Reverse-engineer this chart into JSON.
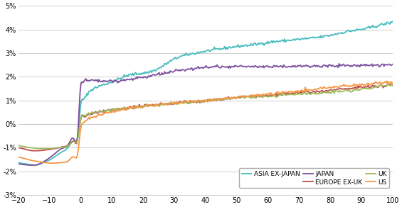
{
  "xlim": [
    -20,
    100
  ],
  "ylim": [
    -0.03,
    0.05
  ],
  "xticks": [
    -20,
    -10,
    0,
    10,
    20,
    30,
    40,
    50,
    60,
    70,
    80,
    90,
    100
  ],
  "yticks": [
    -0.03,
    -0.02,
    -0.01,
    0.0,
    0.01,
    0.02,
    0.03,
    0.04,
    0.05
  ],
  "series": {
    "ASIA EX-JAPAN": {
      "color": "#45BCBC",
      "linewidth": 1.3,
      "x": [
        -20,
        -18,
        -16,
        -14,
        -12,
        -10,
        -8,
        -6,
        -4,
        -2,
        -1,
        0,
        1,
        2,
        3,
        5,
        7,
        10,
        15,
        20,
        25,
        30,
        35,
        40,
        45,
        50,
        55,
        60,
        65,
        70,
        75,
        80,
        85,
        90,
        95,
        100
      ],
      "y": [
        -0.0163,
        -0.0168,
        -0.0172,
        -0.0173,
        -0.0163,
        -0.0152,
        -0.0135,
        -0.0118,
        -0.0098,
        -0.0072,
        -0.005,
        0.0082,
        0.0105,
        0.0125,
        0.014,
        0.0155,
        0.0165,
        0.0178,
        0.0205,
        0.0215,
        0.0235,
        0.0275,
        0.0295,
        0.0308,
        0.0318,
        0.0328,
        0.0335,
        0.0345,
        0.0352,
        0.0358,
        0.0365,
        0.0375,
        0.039,
        0.04,
        0.0415,
        0.043
      ]
    },
    "JAPAN": {
      "color": "#7B4F9E",
      "linewidth": 1.3,
      "x": [
        -20,
        -18,
        -16,
        -14,
        -12,
        -10,
        -8,
        -6,
        -4,
        -2,
        -1,
        0,
        0.5,
        1,
        2,
        3,
        5,
        7,
        10,
        15,
        20,
        25,
        30,
        35,
        40,
        45,
        50,
        55,
        60,
        65,
        70,
        75,
        80,
        85,
        90,
        95,
        100
      ],
      "y": [
        -0.0168,
        -0.0172,
        -0.0174,
        -0.0172,
        -0.016,
        -0.0143,
        -0.0122,
        -0.0103,
        -0.0087,
        -0.0068,
        -0.0052,
        0.0168,
        0.0178,
        0.0182,
        0.0185,
        0.0185,
        0.0183,
        0.0182,
        0.0182,
        0.0188,
        0.0198,
        0.021,
        0.0222,
        0.0232,
        0.024,
        0.0242,
        0.0243,
        0.0243,
        0.0244,
        0.0244,
        0.0245,
        0.0245,
        0.0246,
        0.0247,
        0.0248,
        0.025,
        0.0252
      ]
    },
    "EUROPE EX-UK": {
      "color": "#BE4B48",
      "linewidth": 1.3,
      "x": [
        -20,
        -18,
        -16,
        -14,
        -12,
        -10,
        -8,
        -6,
        -4,
        -2,
        -1,
        0,
        1,
        2,
        3,
        5,
        7,
        10,
        15,
        20,
        25,
        30,
        35,
        40,
        45,
        50,
        55,
        60,
        65,
        70,
        75,
        80,
        85,
        90,
        95,
        100
      ],
      "y": [
        -0.01,
        -0.0106,
        -0.0112,
        -0.0113,
        -0.0111,
        -0.0107,
        -0.0103,
        -0.0097,
        -0.0089,
        -0.0073,
        -0.0063,
        0.0022,
        0.0032,
        0.0038,
        0.0043,
        0.005,
        0.0055,
        0.006,
        0.0068,
        0.0076,
        0.0083,
        0.0088,
        0.0093,
        0.0098,
        0.0105,
        0.0112,
        0.0118,
        0.0122,
        0.0127,
        0.0132,
        0.0136,
        0.0142,
        0.0148,
        0.0155,
        0.016,
        0.0165
      ]
    },
    "UK": {
      "color": "#9BBB59",
      "linewidth": 1.3,
      "x": [
        -20,
        -18,
        -16,
        -14,
        -12,
        -10,
        -8,
        -6,
        -4,
        -2,
        -1,
        0,
        1,
        2,
        3,
        5,
        7,
        10,
        15,
        20,
        25,
        30,
        35,
        40,
        45,
        50,
        55,
        60,
        65,
        70,
        75,
        80,
        85,
        90,
        95,
        100
      ],
      "y": [
        -0.009,
        -0.0096,
        -0.01,
        -0.0103,
        -0.0104,
        -0.0103,
        -0.0101,
        -0.0098,
        -0.0092,
        -0.0076,
        -0.0067,
        0.0022,
        0.0033,
        0.0038,
        0.0043,
        0.005,
        0.0055,
        0.006,
        0.0067,
        0.0074,
        0.008,
        0.0086,
        0.0092,
        0.0098,
        0.0104,
        0.011,
        0.0115,
        0.0118,
        0.0122,
        0.0126,
        0.013,
        0.0135,
        0.0141,
        0.0148,
        0.0158,
        0.0165
      ]
    },
    "US": {
      "color": "#F79646",
      "linewidth": 1.3,
      "x": [
        -20,
        -18,
        -16,
        -14,
        -12,
        -10,
        -8,
        -6,
        -4,
        -2,
        -1,
        0,
        1,
        2,
        3,
        5,
        7,
        10,
        15,
        20,
        25,
        30,
        35,
        40,
        45,
        50,
        55,
        60,
        65,
        70,
        75,
        80,
        85,
        90,
        95,
        100
      ],
      "y": [
        -0.014,
        -0.0146,
        -0.0153,
        -0.0158,
        -0.0162,
        -0.0165,
        -0.0165,
        -0.0162,
        -0.0156,
        -0.014,
        -0.0128,
        -0.0018,
        0.0008,
        0.0018,
        0.0025,
        0.0035,
        0.0042,
        0.0052,
        0.0065,
        0.0074,
        0.0081,
        0.0088,
        0.0094,
        0.01,
        0.0107,
        0.0113,
        0.012,
        0.0126,
        0.0133,
        0.014,
        0.0147,
        0.0154,
        0.016,
        0.0167,
        0.0173,
        0.0178
      ]
    }
  },
  "legend_order": [
    "ASIA EX-JAPAN",
    "JAPAN",
    "EUROPE EX-UK",
    "UK",
    "US"
  ],
  "grid_color": "#BBBBBB",
  "dotted_zero_color": "#AAAAAA",
  "background_color": "#FFFFFF"
}
